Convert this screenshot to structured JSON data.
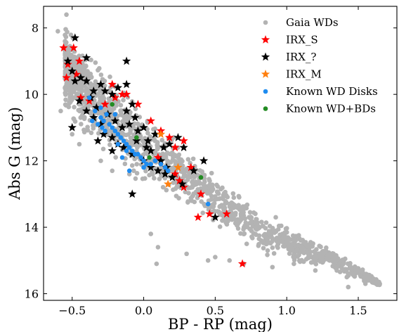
{
  "chart_data": {
    "type": "scatter",
    "title": "",
    "xlabel": "BP - RP (mag)",
    "ylabel": "Abs G (mag)",
    "xlim": [
      -0.7,
      1.77
    ],
    "ylim": [
      16.2,
      7.35
    ],
    "y_inverted": true,
    "x_ticks": [
      -0.5,
      0.0,
      0.5,
      1.0,
      1.5
    ],
    "x_tick_labels": [
      "−0.5",
      "0.0",
      "0.5",
      "1.0",
      "1.5"
    ],
    "y_ticks": [
      8,
      10,
      12,
      14,
      16
    ],
    "y_tick_labels": [
      "8",
      "10",
      "12",
      "14",
      "16"
    ],
    "grid": false,
    "legend_position": "top-right",
    "series": [
      {
        "name": "Gaia WDs",
        "color": "#b3b3b3",
        "marker": "circle",
        "background_cloud": {
          "count": 1500,
          "upper_edge": [
            [
              -0.55,
              7.6
            ],
            [
              -0.4,
              8.4
            ],
            [
              -0.2,
              9.4
            ],
            [
              0.0,
              10.3
            ],
            [
              0.2,
              11.0
            ],
            [
              0.4,
              11.8
            ],
            [
              0.6,
              12.7
            ],
            [
              0.8,
              13.4
            ],
            [
              1.0,
              13.8
            ],
            [
              1.2,
              14.3
            ],
            [
              1.5,
              15.1
            ],
            [
              1.65,
              15.6
            ]
          ],
          "lower_edge": [
            [
              -0.55,
              10.6
            ],
            [
              -0.4,
              11.5
            ],
            [
              -0.2,
              12.3
            ],
            [
              0.0,
              12.9
            ],
            [
              0.2,
              13.4
            ],
            [
              0.4,
              13.9
            ],
            [
              0.6,
              14.3
            ],
            [
              0.8,
              14.8
            ],
            [
              1.0,
              15.1
            ],
            [
              1.2,
              15.3
            ],
            [
              1.5,
              15.6
            ],
            [
              1.65,
              15.8
            ]
          ]
        },
        "points": [
          [
            -0.54,
            7.6
          ],
          [
            -0.6,
            8.1
          ],
          [
            -0.58,
            10.5
          ],
          [
            -0.5,
            11.2
          ],
          [
            -0.45,
            11.5
          ],
          [
            -0.3,
            12.0
          ],
          [
            -0.22,
            12.3
          ],
          [
            -0.1,
            12.4
          ],
          [
            0.05,
            14.2
          ],
          [
            0.1,
            14.6
          ],
          [
            0.09,
            15.1
          ],
          [
            0.3,
            14.8
          ],
          [
            0.5,
            14.9
          ],
          [
            0.6,
            15.0
          ],
          [
            0.72,
            14.5
          ],
          [
            0.9,
            15.2
          ],
          [
            1.05,
            15.1
          ],
          [
            1.2,
            15.3
          ],
          [
            1.35,
            15.3
          ],
          [
            1.42,
            15.5
          ],
          [
            1.49,
            15.3
          ],
          [
            1.55,
            15.7
          ],
          [
            1.65,
            15.7
          ],
          [
            1.43,
            15.8
          ],
          [
            1.3,
            15.0
          ],
          [
            1.15,
            14.8
          ],
          [
            1.0,
            14.5
          ],
          [
            0.85,
            14.3
          ],
          [
            0.7,
            15.1
          ],
          [
            0.45,
            15.0
          ]
        ]
      },
      {
        "name": "IRX_S",
        "color": "#ff0000",
        "marker": "star",
        "points": [
          [
            -0.56,
            8.6
          ],
          [
            -0.49,
            8.6
          ],
          [
            -0.53,
            9.1
          ],
          [
            -0.45,
            9.0
          ],
          [
            -0.47,
            9.4
          ],
          [
            -0.54,
            9.5
          ],
          [
            -0.44,
            10.1
          ],
          [
            -0.38,
            10.2
          ],
          [
            -0.27,
            10.3
          ],
          [
            -0.2,
            10.1
          ],
          [
            -0.15,
            10.0
          ],
          [
            -0.12,
            10.0
          ],
          [
            -0.22,
            9.7
          ],
          [
            -0.04,
            10.3
          ],
          [
            0.05,
            10.8
          ],
          [
            0.12,
            11.1
          ],
          [
            0.18,
            11.3
          ],
          [
            0.22,
            11.6
          ],
          [
            0.28,
            11.4
          ],
          [
            0.1,
            11.9
          ],
          [
            0.22,
            12.4
          ],
          [
            0.25,
            12.6
          ],
          [
            0.28,
            12.8
          ],
          [
            0.33,
            12.2
          ],
          [
            0.4,
            13.0
          ],
          [
            0.38,
            13.7
          ],
          [
            0.46,
            13.6
          ],
          [
            0.58,
            13.6
          ],
          [
            0.69,
            15.1
          ]
        ]
      },
      {
        "name": "IRX_?",
        "color": "#000000",
        "marker": "star",
        "points": [
          [
            -0.48,
            8.3
          ],
          [
            -0.4,
            8.9
          ],
          [
            -0.53,
            9.0
          ],
          [
            -0.5,
            9.3
          ],
          [
            -0.48,
            9.6
          ],
          [
            -0.44,
            9.5
          ],
          [
            -0.4,
            9.6
          ],
          [
            -0.35,
            9.9
          ],
          [
            -0.3,
            9.7
          ],
          [
            -0.27,
            9.9
          ],
          [
            -0.22,
            10.0
          ],
          [
            -0.18,
            9.8
          ],
          [
            -0.12,
            9.7
          ],
          [
            -0.12,
            9.0
          ],
          [
            -0.08,
            10.3
          ],
          [
            -0.12,
            10.5
          ],
          [
            -0.06,
            10.7
          ],
          [
            -0.1,
            10.9
          ],
          [
            -0.04,
            11.1
          ],
          [
            0.0,
            11.0
          ],
          [
            0.03,
            11.4
          ],
          [
            0.08,
            11.2
          ],
          [
            0.14,
            11.6
          ],
          [
            0.18,
            11.5
          ],
          [
            0.24,
            11.3
          ],
          [
            0.28,
            11.6
          ],
          [
            -0.45,
            10.2
          ],
          [
            -0.4,
            10.5
          ],
          [
            -0.35,
            10.7
          ],
          [
            -0.3,
            10.9
          ],
          [
            -0.28,
            11.2
          ],
          [
            -0.22,
            11.3
          ],
          [
            -0.18,
            11.5
          ],
          [
            -0.14,
            11.6
          ],
          [
            -0.08,
            11.8
          ],
          [
            0.0,
            12.0
          ],
          [
            0.05,
            12.2
          ],
          [
            0.1,
            12.3
          ],
          [
            0.15,
            12.4
          ],
          [
            0.2,
            12.5
          ],
          [
            0.27,
            12.7
          ],
          [
            0.35,
            12.3
          ],
          [
            0.42,
            12.0
          ],
          [
            -0.5,
            11.0
          ],
          [
            -0.32,
            11.4
          ],
          [
            -0.22,
            11.7
          ],
          [
            -0.08,
            13.0
          ],
          [
            0.05,
            11.7
          ],
          [
            0.12,
            12.0
          ],
          [
            0.16,
            12.2
          ],
          [
            -0.25,
            10.6
          ],
          [
            -0.2,
            10.8
          ],
          [
            -0.15,
            11.0
          ],
          [
            -0.05,
            11.4
          ],
          [
            0.02,
            11.6
          ],
          [
            0.5,
            13.7
          ],
          [
            -0.33,
            10.4
          ],
          [
            -0.37,
            10.1
          ]
        ]
      },
      {
        "name": "IRX_M",
        "color": "#ff7f0e",
        "marker": "star",
        "points": [
          [
            0.12,
            11.2
          ],
          [
            0.24,
            12.2
          ],
          [
            0.17,
            12.7
          ]
        ]
      },
      {
        "name": "Known WD Disks",
        "color": "#1f8cf0",
        "marker": "circle",
        "points": [
          [
            -0.38,
            10.1
          ],
          [
            -0.34,
            10.5
          ],
          [
            -0.3,
            10.7
          ],
          [
            -0.28,
            10.8
          ],
          [
            -0.26,
            10.6
          ],
          [
            -0.24,
            10.9
          ],
          [
            -0.22,
            11.0
          ],
          [
            -0.2,
            11.1
          ],
          [
            -0.18,
            11.2
          ],
          [
            -0.16,
            11.3
          ],
          [
            -0.14,
            11.4
          ],
          [
            -0.12,
            11.5
          ],
          [
            -0.1,
            11.6
          ],
          [
            -0.08,
            11.7
          ],
          [
            -0.06,
            11.8
          ],
          [
            -0.04,
            11.8
          ],
          [
            -0.02,
            11.9
          ],
          [
            0.0,
            12.0
          ],
          [
            0.02,
            12.1
          ],
          [
            0.05,
            12.1
          ],
          [
            -0.32,
            10.9
          ],
          [
            -0.29,
            11.0
          ],
          [
            -0.27,
            11.1
          ],
          [
            -0.18,
            11.5
          ],
          [
            -0.12,
            11.7
          ],
          [
            -0.1,
            12.3
          ],
          [
            0.0,
            12.2
          ],
          [
            0.15,
            12.2
          ],
          [
            0.17,
            12.3
          ],
          [
            0.45,
            13.3
          ],
          [
            -0.3,
            10.4
          ],
          [
            -0.36,
            10.8
          ],
          [
            -0.15,
            11.9
          ],
          [
            0.08,
            12.0
          ],
          [
            0.12,
            12.1
          ],
          [
            -0.2,
            10.6
          ]
        ]
      },
      {
        "name": "Known WD+BDs",
        "color": "#228b22",
        "marker": "circle",
        "points": [
          [
            -0.22,
            10.3
          ],
          [
            -0.05,
            11.3
          ],
          [
            0.04,
            11.9
          ],
          [
            0.4,
            12.5
          ]
        ]
      }
    ]
  }
}
